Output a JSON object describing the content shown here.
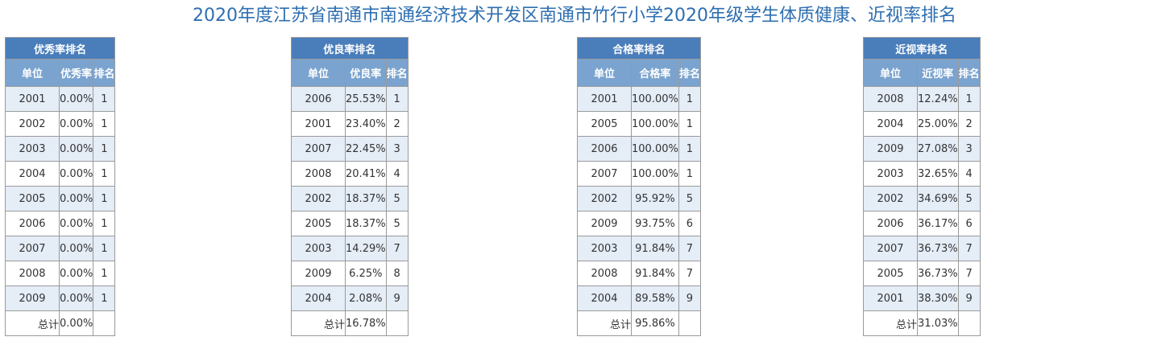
{
  "title": "2020年度江苏省南通市南通经济技术开发区南通市竹行小学2020年级学生体质健康、近视率排名",
  "tables": [
    {
      "group": "优秀率排名",
      "headers": [
        "单位",
        "优秀率",
        "排名"
      ],
      "rows": [
        [
          "2001",
          "0.00%",
          "1"
        ],
        [
          "2002",
          "0.00%",
          "1"
        ],
        [
          "2003",
          "0.00%",
          "1"
        ],
        [
          "2004",
          "0.00%",
          "1"
        ],
        [
          "2005",
          "0.00%",
          "1"
        ],
        [
          "2006",
          "0.00%",
          "1"
        ],
        [
          "2007",
          "0.00%",
          "1"
        ],
        [
          "2008",
          "0.00%",
          "1"
        ],
        [
          "2009",
          "0.00%",
          "1"
        ]
      ],
      "total": [
        "总计",
        "0.00%",
        ""
      ]
    },
    {
      "group": "优良率排名",
      "headers": [
        "单位",
        "优良率",
        "排名"
      ],
      "rows": [
        [
          "2006",
          "25.53%",
          "1"
        ],
        [
          "2001",
          "23.40%",
          "2"
        ],
        [
          "2007",
          "22.45%",
          "3"
        ],
        [
          "2008",
          "20.41%",
          "4"
        ],
        [
          "2002",
          "18.37%",
          "5"
        ],
        [
          "2005",
          "18.37%",
          "5"
        ],
        [
          "2003",
          "14.29%",
          "7"
        ],
        [
          "2009",
          "6.25%",
          "8"
        ],
        [
          "2004",
          "2.08%",
          "9"
        ]
      ],
      "total": [
        "总计",
        "16.78%",
        ""
      ]
    },
    {
      "group": "合格率排名",
      "headers": [
        "单位",
        "合格率",
        "排名"
      ],
      "rows": [
        [
          "2001",
          "100.00%",
          "1"
        ],
        [
          "2005",
          "100.00%",
          "1"
        ],
        [
          "2006",
          "100.00%",
          "1"
        ],
        [
          "2007",
          "100.00%",
          "1"
        ],
        [
          "2002",
          "95.92%",
          "5"
        ],
        [
          "2009",
          "93.75%",
          "6"
        ],
        [
          "2003",
          "91.84%",
          "7"
        ],
        [
          "2008",
          "91.84%",
          "7"
        ],
        [
          "2004",
          "89.58%",
          "9"
        ]
      ],
      "total": [
        "总计",
        "95.86%",
        ""
      ]
    },
    {
      "group": "近视率排名",
      "headers": [
        "单位",
        "近视率",
        "排名"
      ],
      "rows": [
        [
          "2008",
          "12.24%",
          "1"
        ],
        [
          "2004",
          "25.00%",
          "2"
        ],
        [
          "2009",
          "27.08%",
          "3"
        ],
        [
          "2003",
          "32.65%",
          "4"
        ],
        [
          "2002",
          "34.69%",
          "5"
        ],
        [
          "2006",
          "36.17%",
          "6"
        ],
        [
          "2007",
          "36.73%",
          "7"
        ],
        [
          "2005",
          "36.73%",
          "7"
        ],
        [
          "2001",
          "38.30%",
          "9"
        ]
      ],
      "total": [
        "总计",
        "31.03%",
        ""
      ]
    }
  ]
}
